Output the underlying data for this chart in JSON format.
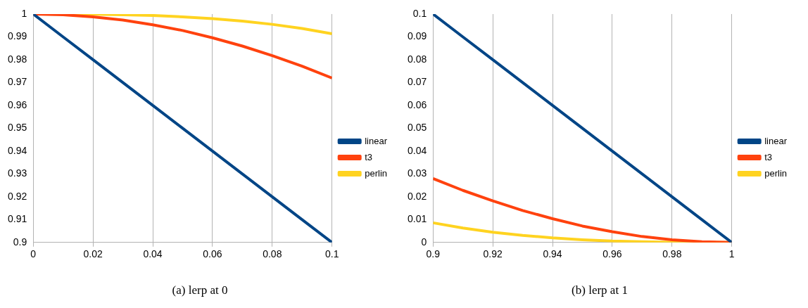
{
  "chart_data": [
    {
      "type": "line",
      "title": "(a) lerp at 0",
      "x": [
        0,
        0.01,
        0.02,
        0.03,
        0.04,
        0.05,
        0.06,
        0.07,
        0.08,
        0.09,
        0.1
      ],
      "series": [
        {
          "name": "linear",
          "color": "#004586",
          "values": [
            1,
            0.99,
            0.98,
            0.97,
            0.96,
            0.95,
            0.94,
            0.93,
            0.92,
            0.91,
            0.9
          ]
        },
        {
          "name": "t3",
          "color": "#ff420e",
          "values": [
            1,
            0.9997,
            0.9988,
            0.9974,
            0.9953,
            0.9928,
            0.9896,
            0.986,
            0.9818,
            0.9772,
            0.972
          ]
        },
        {
          "name": "perlin",
          "color": "#ffd320",
          "values": [
            1,
            null,
            0.9999,
            0.9997,
            0.9994,
            0.9988,
            0.998,
            0.9969,
            0.9955,
            0.9937,
            0.9914
          ]
        }
      ],
      "xlim": [
        0,
        0.1
      ],
      "xticks": [
        0,
        0.02,
        0.04,
        0.06,
        0.08,
        0.1
      ],
      "ylim": [
        0.9,
        1
      ],
      "yticks": [
        0.9,
        0.91,
        0.92,
        0.93,
        0.94,
        0.95,
        0.96,
        0.97,
        0.98,
        0.99,
        1
      ],
      "grid": "x",
      "legend": "right",
      "marker": "none",
      "line_style": "solid"
    },
    {
      "type": "line",
      "title": "(b) lerp at 1",
      "x": [
        0.9,
        0.91,
        0.92,
        0.93,
        0.94,
        0.95,
        0.96,
        0.97,
        0.98,
        0.99,
        1
      ],
      "series": [
        {
          "name": "linear",
          "color": "#004586",
          "values": [
            0.1,
            0.09,
            0.08,
            0.07,
            0.06,
            0.05,
            0.04,
            0.03,
            0.02,
            0.01,
            0
          ]
        },
        {
          "name": "t3",
          "color": "#ff420e",
          "values": [
            0.028,
            0.0228,
            0.0182,
            0.014,
            0.0104,
            0.0072,
            0.0047,
            0.0026,
            0.0012,
            0.0003,
            0
          ]
        },
        {
          "name": "perlin",
          "color": "#ffd320",
          "values": [
            0.0086,
            0.0063,
            0.0045,
            0.0031,
            0.002,
            0.0012,
            0.0006,
            0.0003,
            0.0001,
            0,
            0
          ]
        }
      ],
      "xlim": [
        0.9,
        1
      ],
      "xticks": [
        0.9,
        0.92,
        0.94,
        0.96,
        0.98,
        1
      ],
      "ylim": [
        0,
        0.1
      ],
      "yticks": [
        0,
        0.01,
        0.02,
        0.03,
        0.04,
        0.05,
        0.06,
        0.07,
        0.08,
        0.09,
        0.1
      ],
      "grid": "x",
      "legend": "right",
      "marker": "none",
      "line_style": "solid"
    }
  ]
}
